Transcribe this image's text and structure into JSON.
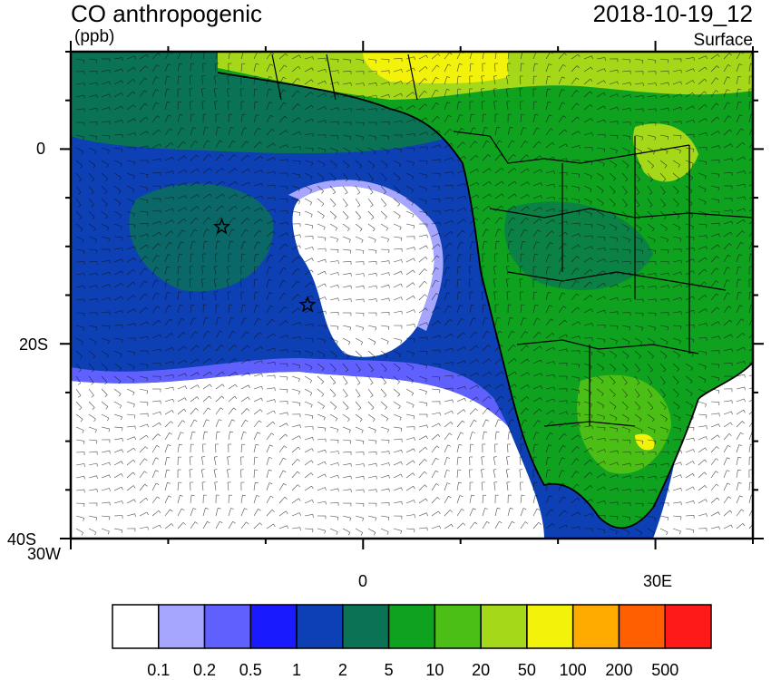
{
  "header": {
    "title": "CO anthropogenic",
    "units": "(ppb)",
    "datetime": "2018-10-19_12",
    "level": "Surface"
  },
  "map": {
    "lon_range": [
      -30,
      40
    ],
    "lat_range": [
      -40,
      10
    ],
    "x_tick_labels": [
      "30W",
      "0",
      "30E"
    ],
    "y_tick_labels": [
      "0",
      "20S",
      "40S"
    ],
    "markers": [
      {
        "type": "star",
        "lon": -14.5,
        "lat": -8
      },
      {
        "type": "star",
        "lon": -5.7,
        "lat": -16
      }
    ],
    "background_color": "#e6f0ec"
  },
  "colorbar": {
    "colors": [
      "#ffffff",
      "#a6a6ff",
      "#6060ff",
      "#1a1aff",
      "#0d3fb5",
      "#0a7355",
      "#0ea21f",
      "#4cbf16",
      "#a6d81a",
      "#f2f20a",
      "#ffab00",
      "#ff5f00",
      "#ff1a1a"
    ],
    "labels": [
      "0.1",
      "0.2",
      "0.5",
      "1",
      "2",
      "5",
      "10",
      "20",
      "50",
      "100",
      "200",
      "500"
    ]
  }
}
